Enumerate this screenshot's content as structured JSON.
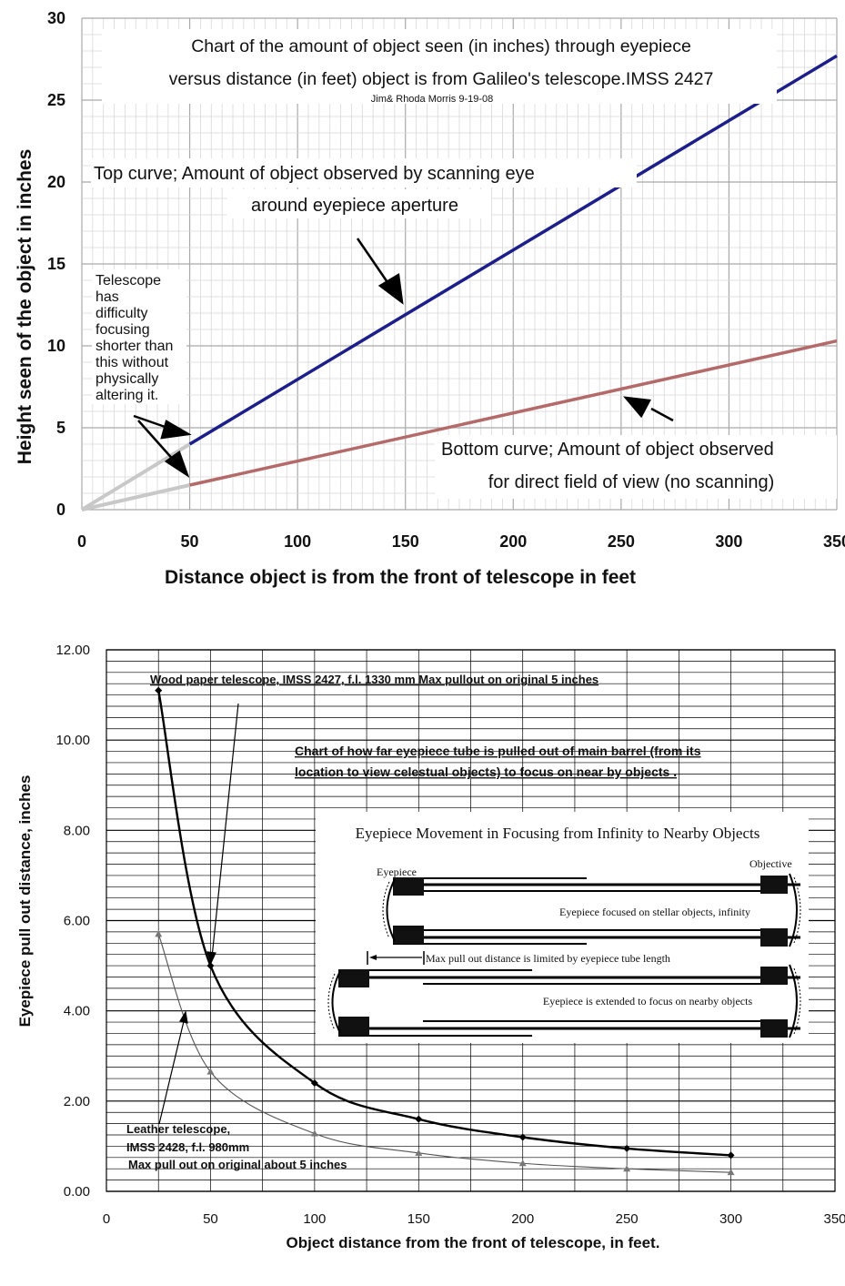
{
  "chart_data": [
    {
      "type": "line",
      "title": "Chart of the amount  of object seen (in inches) through eyepiece",
      "title_line2": "versus distance (in feet) object is  from Galileo's  telescope.IMSS 2427",
      "credit": "Jim& Rhoda Morris 9-19-08",
      "xlabel": "Distance object is from the front of telescope in feet",
      "ylabel": "Height seen of the object in inches",
      "xlim": [
        0,
        350
      ],
      "ylim": [
        0,
        30
      ],
      "xticks": [
        "0",
        "50",
        "100",
        "150",
        "200",
        "250",
        "300",
        "350"
      ],
      "yticks": [
        "0",
        "5",
        "10",
        "15",
        "20",
        "25",
        "30"
      ],
      "grid": true,
      "series": [
        {
          "color": "#1c1f8a",
          "x": [
            50,
            350
          ],
          "y": [
            4,
            27.7
          ],
          "extrapolated": {
            "color": "#c8c8c8",
            "x": [
              0,
              50
            ],
            "y": [
              0,
              4
            ]
          }
        },
        {
          "color": "#b56a6a",
          "x": [
            50,
            350
          ],
          "y": [
            1.5,
            10.3
          ],
          "extrapolated": {
            "color": "#c8c8c8",
            "x": [
              0,
              50
            ],
            "y": [
              0,
              1.5
            ]
          }
        }
      ],
      "annotations": {
        "top_curve": [
          "Top curve; Amount of object  observed by scanning eye",
          "around eyepiece aperture"
        ],
        "bottom_curve": [
          "Bottom curve; Amount of object  observed",
          "for direct field of view (no scanning)"
        ],
        "focus_note": [
          "Telescope",
          "has",
          "difficulty",
          "focusing",
          "shorter than",
          "this without",
          "physically",
          "altering it."
        ]
      }
    },
    {
      "type": "line",
      "title": "Chart of how far eyepiece tube  is  pulled out of main barrel (from its",
      "title_line2": "location to view celestual objects)  to focus on  near by objects .",
      "xlabel": "Object distance from the  front of telescope, in feet.",
      "ylabel": "Eyepiece pull out distance, inches",
      "xlim": [
        0,
        350
      ],
      "ylim": [
        0,
        12
      ],
      "xticks": [
        "0",
        "50",
        "100",
        "150",
        "200",
        "250",
        "300",
        "350"
      ],
      "yticks": [
        "0.00",
        "2.00",
        "4.00",
        "6.00",
        "8.00",
        "10.00",
        "12.00"
      ],
      "grid": true,
      "series": [
        {
          "color": "#000000",
          "marker": "diamond",
          "x": [
            25,
            50,
            100,
            150,
            200,
            250,
            300
          ],
          "y": [
            11.1,
            5.0,
            2.4,
            1.6,
            1.2,
            0.95,
            0.8
          ]
        },
        {
          "color": "#555555",
          "marker": "triangle",
          "x": [
            25,
            50,
            100,
            150,
            200,
            250,
            300
          ],
          "y": [
            5.7,
            2.65,
            1.28,
            0.85,
            0.62,
            0.5,
            0.42
          ]
        }
      ],
      "annotations": {
        "wood": "Wood paper telescope, IMSS 2427, f.l. 1330 mm  Max pullout on original 5 inches",
        "leather": [
          "Leather telescope,",
          "IMSS 2428, f.l. 980mm",
          "Max pull out on original about 5 inches"
        ]
      },
      "inset": {
        "title": "Eyepiece Movement in Focusing from Infinity to Nearby Objects",
        "eyepiece": "Eyepiece",
        "objective": "Objective",
        "focused_infinity": "Eyepiece focused on stellar objects, infinity",
        "max_pullout": "Max pull out distance is limited by eyepiece tube length",
        "extended": "Eyepiece is extended to focus on nearby objects"
      }
    }
  ]
}
